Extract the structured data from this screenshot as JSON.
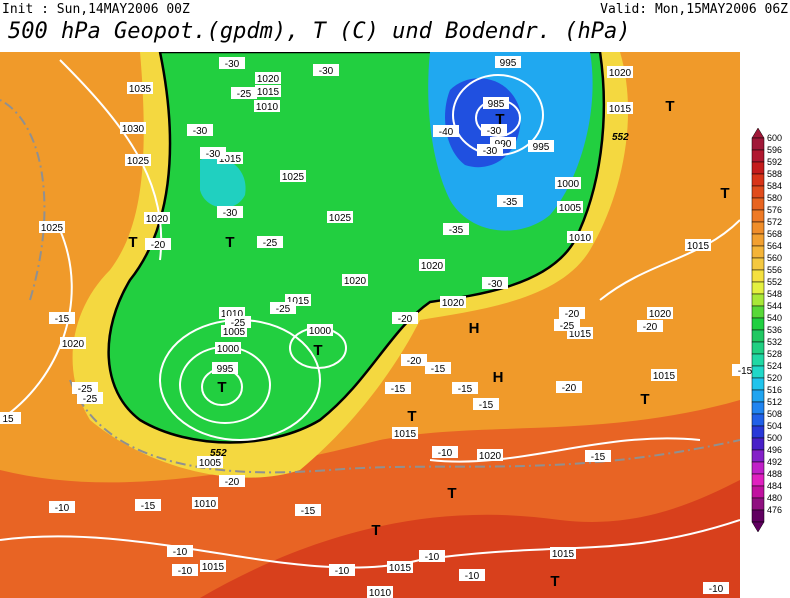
{
  "header": {
    "init": "Init : Sun,14MAY2006 00Z",
    "valid": "Valid: Mon,15MAY2006 06Z",
    "title": "500 hPa Geopot.(gpdm), T (C) und Bodendr. (hPa)"
  },
  "map": {
    "isobar_labels": [
      "1035",
      "1030",
      "1025",
      "1020",
      "1025",
      "1020",
      "1020",
      "1015",
      "1010",
      "1015",
      "1025",
      "1025",
      "1020",
      "1020",
      "1015",
      "1010",
      "1005",
      "1000",
      "995",
      "1000",
      "995",
      "985",
      "990",
      "995",
      "1000",
      "1005",
      "1010",
      "1020",
      "1015",
      "1015",
      "1020",
      "1015",
      "1015",
      "1020",
      "1015",
      "1020",
      "1005",
      "1010",
      "1015",
      "1015",
      "1015",
      "1010",
      "15"
    ],
    "temperature_labels": [
      "-30",
      "-30",
      "-25",
      "-30",
      "-30",
      "-30",
      "-25",
      "-20",
      "-15",
      "-25",
      "-25",
      "-25",
      "-25",
      "-20",
      "-20",
      "-15",
      "-15",
      "-15",
      "-15",
      "-10",
      "-15",
      "-20",
      "-20",
      "-25",
      "-20",
      "-15",
      "-20",
      "-15",
      "-15",
      "-10",
      "-10",
      "-10",
      "-10",
      "-10",
      "-10",
      "-10",
      "-30",
      "-35",
      "-35",
      "-40",
      "-30",
      "-30"
    ],
    "contour_labels": [
      "552",
      "552"
    ],
    "centers": [
      "T",
      "T",
      "T",
      "T",
      "T",
      "T",
      "H",
      "H",
      "T",
      "T",
      "T",
      "T",
      "T",
      "T"
    ]
  },
  "colorbar": {
    "levels": [
      {
        "label": "600",
        "color": "#a01838"
      },
      {
        "label": "596",
        "color": "#b01830"
      },
      {
        "label": "592",
        "color": "#c41c1c"
      },
      {
        "label": "588",
        "color": "#d83418"
      },
      {
        "label": "584",
        "color": "#e04c1c"
      },
      {
        "label": "580",
        "color": "#e86420"
      },
      {
        "label": "576",
        "color": "#ee7a26"
      },
      {
        "label": "572",
        "color": "#f08e2a"
      },
      {
        "label": "568",
        "color": "#f2a030"
      },
      {
        "label": "564",
        "color": "#f4b438"
      },
      {
        "label": "560",
        "color": "#f4c840"
      },
      {
        "label": "556",
        "color": "#f4e040"
      },
      {
        "label": "552",
        "color": "#e4f040"
      },
      {
        "label": "548",
        "color": "#a8e838"
      },
      {
        "label": "544",
        "color": "#58d838"
      },
      {
        "label": "540",
        "color": "#20d040"
      },
      {
        "label": "536",
        "color": "#20c862"
      },
      {
        "label": "532",
        "color": "#20d082"
      },
      {
        "label": "528",
        "color": "#20d8a4"
      },
      {
        "label": "524",
        "color": "#20d8c8"
      },
      {
        "label": "520",
        "color": "#20c4ec"
      },
      {
        "label": "516",
        "color": "#20a4f0"
      },
      {
        "label": "512",
        "color": "#2084f0"
      },
      {
        "label": "508",
        "color": "#2060e8"
      },
      {
        "label": "504",
        "color": "#2838d8"
      },
      {
        "label": "500",
        "color": "#4820c8"
      },
      {
        "label": "496",
        "color": "#8420c8"
      },
      {
        "label": "492",
        "color": "#c020c8"
      },
      {
        "label": "488",
        "color": "#e020c0"
      },
      {
        "label": "484",
        "color": "#c010a0"
      },
      {
        "label": "480",
        "color": "#901080"
      },
      {
        "label": "476",
        "color": "#600060"
      }
    ]
  }
}
